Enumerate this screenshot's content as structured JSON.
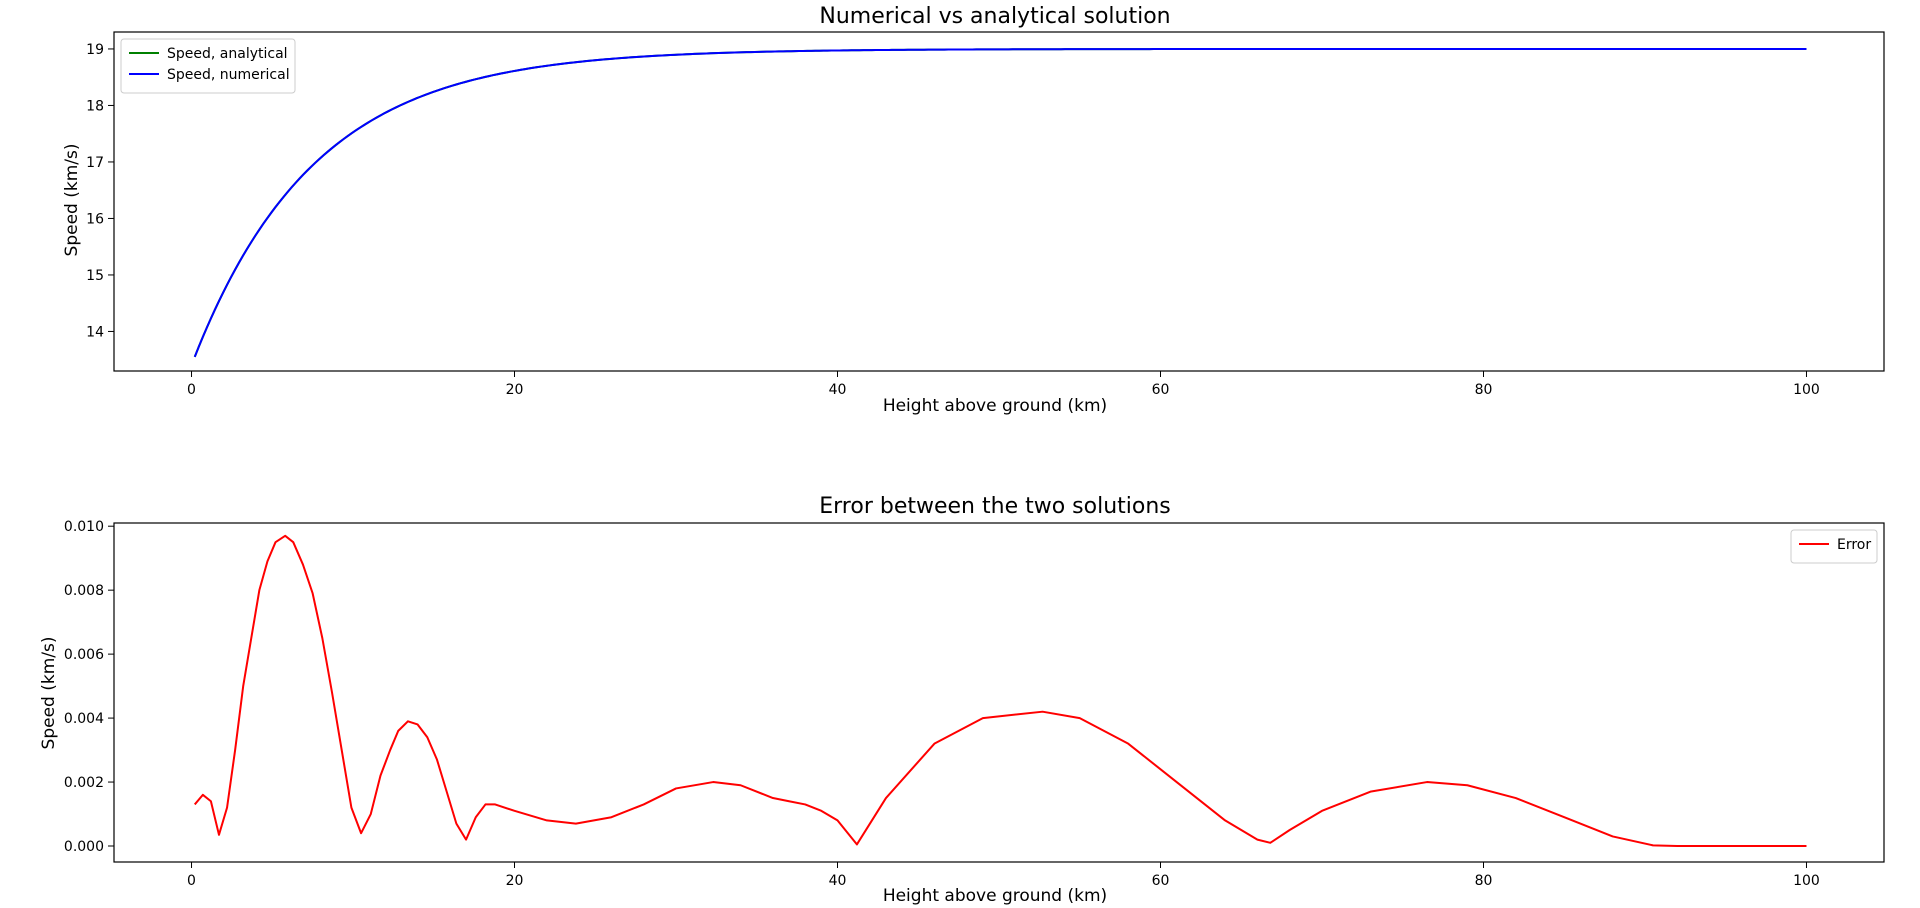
{
  "chart_data": [
    {
      "type": "line",
      "title": "Numerical vs analytical solution",
      "xlabel": "Height above ground (km)",
      "ylabel": "Speed (km/s)",
      "xlim": [
        -4.8,
        104.8
      ],
      "ylim": [
        13.3,
        19.3
      ],
      "x_ticks": [
        0,
        20,
        40,
        60,
        80,
        100
      ],
      "x_tick_labels": [
        "0",
        "20",
        "40",
        "60",
        "80",
        "100"
      ],
      "y_ticks": [
        14,
        15,
        16,
        17,
        18,
        19
      ],
      "y_tick_labels": [
        "14",
        "15",
        "16",
        "17",
        "18",
        "19"
      ],
      "grid": false,
      "legend_position": "upper-left",
      "curve_model": {
        "form": "exponential-approach",
        "x_start": 0.2,
        "x_end": 100,
        "y_start": 13.55,
        "y_limit": 19.0,
        "decay_km": 7.5
      },
      "series": [
        {
          "name": "Speed, analytical",
          "color": "#008000"
        },
        {
          "name": "Speed, numerical",
          "color": "#0000ff"
        }
      ]
    },
    {
      "type": "line",
      "title": "Error between the two solutions",
      "xlabel": "Height above ground (km)",
      "ylabel": "Speed (km/s)",
      "xlim": [
        -4.8,
        104.8
      ],
      "ylim": [
        -0.0005,
        0.0101
      ],
      "x_ticks": [
        0,
        20,
        40,
        60,
        80,
        100
      ],
      "x_tick_labels": [
        "0",
        "20",
        "40",
        "60",
        "80",
        "100"
      ],
      "y_ticks": [
        0,
        0.002,
        0.004,
        0.006,
        0.008,
        0.01
      ],
      "y_tick_labels": [
        "0.000",
        "0.002",
        "0.004",
        "0.006",
        "0.008",
        "0.010"
      ],
      "grid": false,
      "legend_position": "upper-right",
      "series": [
        {
          "name": "Error",
          "color": "#ff0000",
          "x": [
            0.2,
            0.7,
            1.2,
            1.7,
            2.2,
            2.7,
            3.2,
            3.7,
            4.2,
            4.7,
            5.2,
            5.8,
            6.3,
            6.9,
            7.5,
            8.1,
            8.7,
            9.3,
            9.9,
            10.5,
            11.1,
            11.7,
            12.3,
            12.8,
            13.4,
            14.0,
            14.6,
            15.2,
            15.8,
            16.4,
            17.0,
            17.6,
            18.2,
            18.8,
            20,
            22,
            23.8,
            26,
            28,
            30,
            32.3,
            34,
            36,
            37,
            38,
            39,
            40,
            41.2,
            43,
            46,
            49,
            52.7,
            55,
            58,
            61,
            64,
            66,
            66.8,
            68,
            70,
            73,
            76.5,
            79,
            82,
            85,
            88,
            90.5,
            92,
            95,
            100
          ],
          "y": [
            0.0013,
            0.0016,
            0.0014,
            0.00035,
            0.0012,
            0.003,
            0.005,
            0.0065,
            0.008,
            0.0089,
            0.0095,
            0.0097,
            0.0095,
            0.0088,
            0.0079,
            0.0065,
            0.0048,
            0.003,
            0.0012,
            0.0004,
            0.001,
            0.0022,
            0.003,
            0.0036,
            0.0039,
            0.0038,
            0.0034,
            0.0027,
            0.0017,
            0.0007,
            0.0002,
            0.0009,
            0.0013,
            0.0013,
            0.0011,
            0.0008,
            0.0007,
            0.0009,
            0.0013,
            0.0018,
            0.002,
            0.0019,
            0.0015,
            0.0014,
            0.0013,
            0.0011,
            0.0008,
            5e-05,
            0.0015,
            0.0032,
            0.004,
            0.0042,
            0.004,
            0.0032,
            0.002,
            0.0008,
            0.0002,
            0.0001,
            0.0005,
            0.0011,
            0.0017,
            0.002,
            0.0019,
            0.0015,
            0.0009,
            0.0003,
            2e-05,
            0.0,
            0.0,
            0.0
          ]
        }
      ]
    }
  ]
}
